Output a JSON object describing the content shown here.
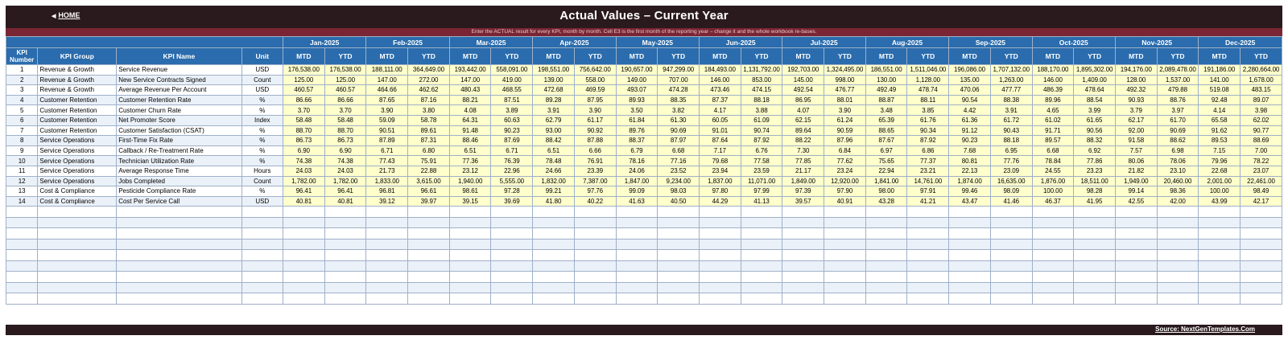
{
  "header": {
    "home_label": "HOME",
    "title": "Actual Values  –  Current Year",
    "instruction": "Enter the ACTUAL result for every KPI, month by month. Cell E3 is the first month of the reporting year – change it and the whole workbook re-bases."
  },
  "columns": {
    "kpi_number": "KPI Number",
    "kpi_group": "KPI Group",
    "kpi_name": "KPI Name",
    "unit": "Unit",
    "mtd": "MTD",
    "ytd": "YTD",
    "months": [
      "Jan-2025",
      "Feb-2025",
      "Mar-2025",
      "Apr-2025",
      "May-2025",
      "Jun-2025",
      "Jul-2025",
      "Aug-2025",
      "Sep-2025",
      "Oct-2025",
      "Nov-2025",
      "Dec-2025"
    ]
  },
  "rows": [
    {
      "num": "1",
      "group": "Revenue & Growth",
      "name": "Service Revenue",
      "unit": "USD",
      "values": [
        "176,538.00",
        "176,538.00",
        "188,111.00",
        "364,649.00",
        "193,442.00",
        "558,091.00",
        "198,551.00",
        "756,642.00",
        "190,657.00",
        "947,299.00",
        "184,493.00",
        "1,131,792.00",
        "192,703.00",
        "1,324,495.00",
        "186,551.00",
        "1,511,046.00",
        "196,086.00",
        "1,707,132.00",
        "188,170.00",
        "1,895,302.00",
        "194,176.00",
        "2,089,478.00",
        "191,186.00",
        "2,280,664.00"
      ]
    },
    {
      "num": "2",
      "group": "Revenue & Growth",
      "name": "New Service Contracts Signed",
      "unit": "Count",
      "values": [
        "125.00",
        "125.00",
        "147.00",
        "272.00",
        "147.00",
        "419.00",
        "139.00",
        "558.00",
        "149.00",
        "707.00",
        "146.00",
        "853.00",
        "145.00",
        "998.00",
        "130.00",
        "1,128.00",
        "135.00",
        "1,263.00",
        "146.00",
        "1,409.00",
        "128.00",
        "1,537.00",
        "141.00",
        "1,678.00"
      ]
    },
    {
      "num": "3",
      "group": "Revenue & Growth",
      "name": "Average Revenue Per Account",
      "unit": "USD",
      "values": [
        "460.57",
        "460.57",
        "464.66",
        "462.62",
        "480.43",
        "468.55",
        "472.68",
        "469.59",
        "493.07",
        "474.28",
        "473.46",
        "474.15",
        "492.54",
        "476.77",
        "492.49",
        "478.74",
        "470.06",
        "477.77",
        "486.39",
        "478.64",
        "492.32",
        "479.88",
        "519.08",
        "483.15"
      ]
    },
    {
      "num": "4",
      "group": "Customer Retention",
      "name": "Customer Retention Rate",
      "unit": "%",
      "values": [
        "86.66",
        "86.66",
        "87.65",
        "87.16",
        "88.21",
        "87.51",
        "89.28",
        "87.95",
        "89.93",
        "88.35",
        "87.37",
        "88.18",
        "86.95",
        "88.01",
        "88.87",
        "88.11",
        "90.54",
        "88.38",
        "89.96",
        "88.54",
        "90.93",
        "88.76",
        "92.48",
        "89.07"
      ]
    },
    {
      "num": "5",
      "group": "Customer Retention",
      "name": "Customer Churn Rate",
      "unit": "%",
      "values": [
        "3.70",
        "3.70",
        "3.90",
        "3.80",
        "4.08",
        "3.89",
        "3.91",
        "3.90",
        "3.50",
        "3.82",
        "4.17",
        "3.88",
        "4.07",
        "3.90",
        "3.48",
        "3.85",
        "4.42",
        "3.91",
        "4.65",
        "3.99",
        "3.79",
        "3.97",
        "4.14",
        "3.98"
      ]
    },
    {
      "num": "6",
      "group": "Customer Retention",
      "name": "Net Promoter Score",
      "unit": "Index",
      "values": [
        "58.48",
        "58.48",
        "59.09",
        "58.78",
        "64.31",
        "60.63",
        "62.79",
        "61.17",
        "61.84",
        "61.30",
        "60.05",
        "61.09",
        "62.15",
        "61.24",
        "65.39",
        "61.76",
        "61.36",
        "61.72",
        "61.02",
        "61.65",
        "62.17",
        "61.70",
        "65.58",
        "62.02"
      ]
    },
    {
      "num": "7",
      "group": "Customer Retention",
      "name": "Customer Satisfaction (CSAT)",
      "unit": "%",
      "values": [
        "88.70",
        "88.70",
        "90.51",
        "89.61",
        "91.48",
        "90.23",
        "93.00",
        "90.92",
        "89.76",
        "90.69",
        "91.01",
        "90.74",
        "89.64",
        "90.59",
        "88.65",
        "90.34",
        "91.12",
        "90.43",
        "91.71",
        "90.56",
        "92.00",
        "90.69",
        "91.62",
        "90.77"
      ]
    },
    {
      "num": "8",
      "group": "Service Operations",
      "name": "First-Time Fix Rate",
      "unit": "%",
      "values": [
        "86.73",
        "86.73",
        "87.89",
        "87.31",
        "88.46",
        "87.69",
        "88.42",
        "87.88",
        "88.37",
        "87.97",
        "87.64",
        "87.92",
        "88.22",
        "87.96",
        "87.67",
        "87.92",
        "90.23",
        "88.18",
        "89.57",
        "88.32",
        "91.58",
        "88.62",
        "89.53",
        "88.69"
      ]
    },
    {
      "num": "9",
      "group": "Service Operations",
      "name": "Callback / Re-Treatment Rate",
      "unit": "%",
      "values": [
        "6.90",
        "6.90",
        "6.71",
        "6.80",
        "6.51",
        "6.71",
        "6.51",
        "6.66",
        "6.79",
        "6.68",
        "7.17",
        "6.76",
        "7.30",
        "6.84",
        "6.97",
        "6.86",
        "7.68",
        "6.95",
        "6.68",
        "6.92",
        "7.57",
        "6.98",
        "7.15",
        "7.00"
      ]
    },
    {
      "num": "10",
      "group": "Service Operations",
      "name": "Technician Utilization Rate",
      "unit": "%",
      "values": [
        "74.38",
        "74.38",
        "77.43",
        "75.91",
        "77.36",
        "76.39",
        "78.48",
        "76.91",
        "78.16",
        "77.16",
        "79.68",
        "77.58",
        "77.85",
        "77.62",
        "75.65",
        "77.37",
        "80.81",
        "77.76",
        "78.84",
        "77.86",
        "80.06",
        "78.06",
        "79.96",
        "78.22"
      ]
    },
    {
      "num": "11",
      "group": "Service Operations",
      "name": "Average Response Time",
      "unit": "Hours",
      "values": [
        "24.03",
        "24.03",
        "21.73",
        "22.88",
        "23.12",
        "22.96",
        "24.66",
        "23.39",
        "24.06",
        "23.52",
        "23.94",
        "23.59",
        "21.17",
        "23.24",
        "22.94",
        "23.21",
        "22.13",
        "23.09",
        "24.55",
        "23.23",
        "21.82",
        "23.10",
        "22.68",
        "23.07"
      ]
    },
    {
      "num": "12",
      "group": "Service Operations",
      "name": "Jobs Completed",
      "unit": "Count",
      "values": [
        "1,782.00",
        "1,782.00",
        "1,833.00",
        "3,615.00",
        "1,940.00",
        "5,555.00",
        "1,832.00",
        "7,387.00",
        "1,847.00",
        "9,234.00",
        "1,837.00",
        "11,071.00",
        "1,849.00",
        "12,920.00",
        "1,841.00",
        "14,761.00",
        "1,874.00",
        "16,635.00",
        "1,876.00",
        "18,511.00",
        "1,949.00",
        "20,460.00",
        "2,001.00",
        "22,461.00"
      ]
    },
    {
      "num": "13",
      "group": "Cost & Compliance",
      "name": "Pesticide Compliance Rate",
      "unit": "%",
      "values": [
        "96.41",
        "96.41",
        "96.81",
        "96.61",
        "98.61",
        "97.28",
        "99.21",
        "97.76",
        "99.09",
        "98.03",
        "97.80",
        "97.99",
        "97.39",
        "97.90",
        "98.00",
        "97.91",
        "99.46",
        "98.09",
        "100.00",
        "98.28",
        "99.14",
        "98.36",
        "100.00",
        "98.49"
      ]
    },
    {
      "num": "14",
      "group": "Cost & Compliance",
      "name": "Cost Per Service Call",
      "unit": "USD",
      "values": [
        "40.81",
        "40.81",
        "39.12",
        "39.97",
        "39.15",
        "39.69",
        "41.80",
        "40.22",
        "41.63",
        "40.50",
        "44.29",
        "41.13",
        "39.57",
        "40.91",
        "43.28",
        "41.21",
        "43.47",
        "41.46",
        "46.37",
        "41.95",
        "42.55",
        "42.00",
        "43.99",
        "42.17"
      ]
    }
  ],
  "footer": {
    "source_label": "Source: NextGenTemplates.Com"
  }
}
